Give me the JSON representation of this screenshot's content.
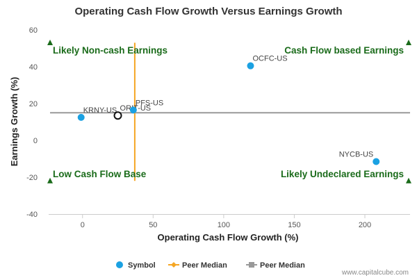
{
  "chart_data": {
    "type": "scatter",
    "title": "Operating Cash Flow Growth Versus Earnings Growth",
    "xlabel": "Operating Cash Flow Growth (%)",
    "ylabel": "Earnings Growth (%)",
    "xlim": [
      -24,
      232
    ],
    "ylim": [
      -40,
      60
    ],
    "xticks": [
      0,
      50,
      100,
      150,
      200
    ],
    "yticks": [
      -40,
      -20,
      0,
      20,
      40,
      60
    ],
    "xtick_labels": [
      "0",
      "50",
      "100",
      "150",
      "200"
    ],
    "ytick_labels": [
      "-40",
      "-20",
      "0",
      "20",
      "40",
      "60"
    ],
    "grid": false,
    "points": [
      {
        "label": "KRNY-US",
        "x": -1,
        "y": 12.5,
        "highlight": false
      },
      {
        "label": "ORIT-US",
        "x": 25,
        "y": 13.5,
        "highlight": true
      },
      {
        "label": "PFS-US",
        "x": 36,
        "y": 16.5,
        "highlight": false
      },
      {
        "label": "OCFC-US",
        "x": 119,
        "y": 40.5,
        "highlight": false
      },
      {
        "label": "NYCB-US",
        "x": 208,
        "y": -11.5,
        "highlight": false
      }
    ],
    "peer_median_x": {
      "x": 37,
      "y_range": [
        -22,
        53
      ]
    },
    "peer_median_y": {
      "y": 15,
      "x_range": [
        -23,
        232
      ]
    },
    "quadrants": {
      "top_left": "Likely Non-cash Earnings",
      "top_right": "Cash Flow based Earnings",
      "bottom_left": "Low Cash Flow Base",
      "bottom_right": "Likely Undeclared Earnings"
    },
    "quadrant_markers": [
      {
        "x": -23,
        "y": 53
      },
      {
        "x": 231,
        "y": 53
      },
      {
        "x": -23,
        "y": -22
      },
      {
        "x": 231,
        "y": -22
      }
    ],
    "legend": {
      "position": "bottom",
      "items": [
        {
          "label": "Symbol",
          "kind": "circle",
          "color": "#1ba1e2"
        },
        {
          "label": "Peer Median",
          "kind": "line-diamond",
          "color": "#f5a623"
        },
        {
          "label": "Peer Median",
          "kind": "line-square",
          "color": "#999999"
        }
      ]
    },
    "colors": {
      "points": "#1ba1e2",
      "highlight_stroke": "#111111",
      "median_x_line": "#f5a623",
      "median_y_line": "#999999",
      "quadrant_text": "#1a6b1a",
      "markers": "#1a6b1a",
      "axis": "#cccccc"
    }
  },
  "credit": "www.capitalcube.com"
}
